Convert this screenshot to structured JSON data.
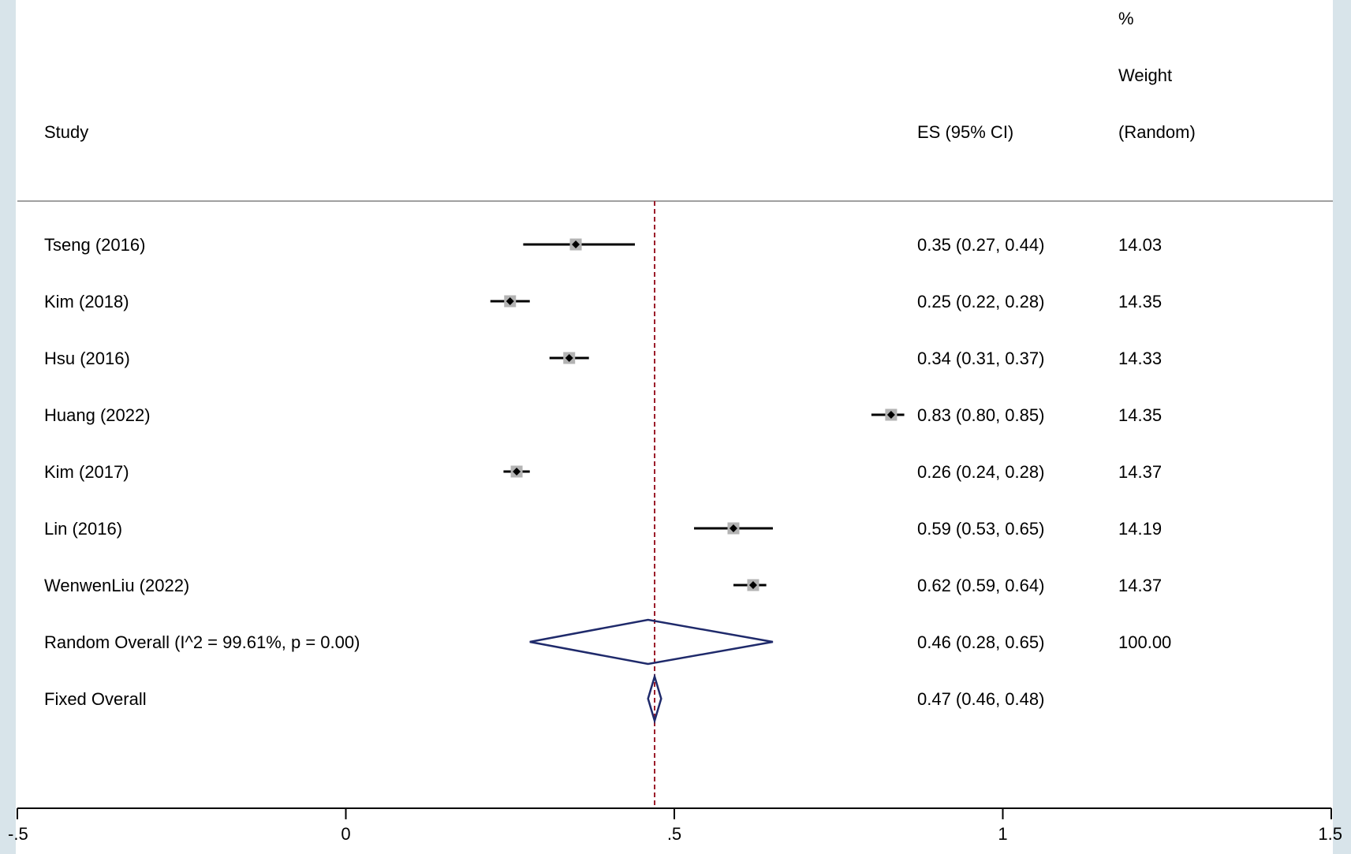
{
  "chart_data": {
    "type": "forest",
    "headers": {
      "study": "Study",
      "es": "ES (95% CI)",
      "weight_line1": "%",
      "weight_line2": "Weight",
      "weight_line3": "(Random)"
    },
    "studies": [
      {
        "label": "Tseng (2016)",
        "es": 0.35,
        "lo": 0.27,
        "hi": 0.44,
        "es_text": "0.35 (0.27, 0.44)",
        "weight": 14.03,
        "weight_text": "14.03"
      },
      {
        "label": "Kim (2018)",
        "es": 0.25,
        "lo": 0.22,
        "hi": 0.28,
        "es_text": "0.25 (0.22, 0.28)",
        "weight": 14.35,
        "weight_text": "14.35"
      },
      {
        "label": "Hsu (2016)",
        "es": 0.34,
        "lo": 0.31,
        "hi": 0.37,
        "es_text": "0.34 (0.31, 0.37)",
        "weight": 14.33,
        "weight_text": "14.33"
      },
      {
        "label": "Huang (2022)",
        "es": 0.83,
        "lo": 0.8,
        "hi": 0.85,
        "es_text": "0.83 (0.80, 0.85)",
        "weight": 14.35,
        "weight_text": "14.35"
      },
      {
        "label": "Kim (2017)",
        "es": 0.26,
        "lo": 0.24,
        "hi": 0.28,
        "es_text": "0.26 (0.24, 0.28)",
        "weight": 14.37,
        "weight_text": "14.37"
      },
      {
        "label": "Lin (2016)",
        "es": 0.59,
        "lo": 0.53,
        "hi": 0.65,
        "es_text": "0.59 (0.53, 0.65)",
        "weight": 14.19,
        "weight_text": "14.19"
      },
      {
        "label": "WenwenLiu (2022)",
        "es": 0.62,
        "lo": 0.59,
        "hi": 0.64,
        "es_text": "0.62 (0.59, 0.64)",
        "weight": 14.37,
        "weight_text": "14.37"
      }
    ],
    "overall": [
      {
        "label": "Random Overall  (I^2 = 99.61%, p = 0.00)",
        "es": 0.46,
        "lo": 0.28,
        "hi": 0.65,
        "es_text": "0.46 (0.28, 0.65)",
        "weight_text": "100.00"
      },
      {
        "label": "Fixed Overall",
        "es": 0.47,
        "lo": 0.46,
        "hi": 0.48,
        "es_text": "0.47 (0.46, 0.48)",
        "weight_text": ""
      }
    ],
    "reference_line": 0.47,
    "xlim": [
      -0.5,
      1.5
    ],
    "xticks": [
      -0.5,
      0,
      0.5,
      1,
      1.5
    ],
    "xtick_labels": [
      "-.5",
      "0",
      ".5",
      "1",
      "1.5"
    ],
    "colors": {
      "ci_line": "#000000",
      "weight_box": "#b3b3b3",
      "diamond": "#1f2a6b",
      "reference_line": "#9b1c2a",
      "divider": "#a0a0a0",
      "frame": "#d8e4ea"
    }
  }
}
